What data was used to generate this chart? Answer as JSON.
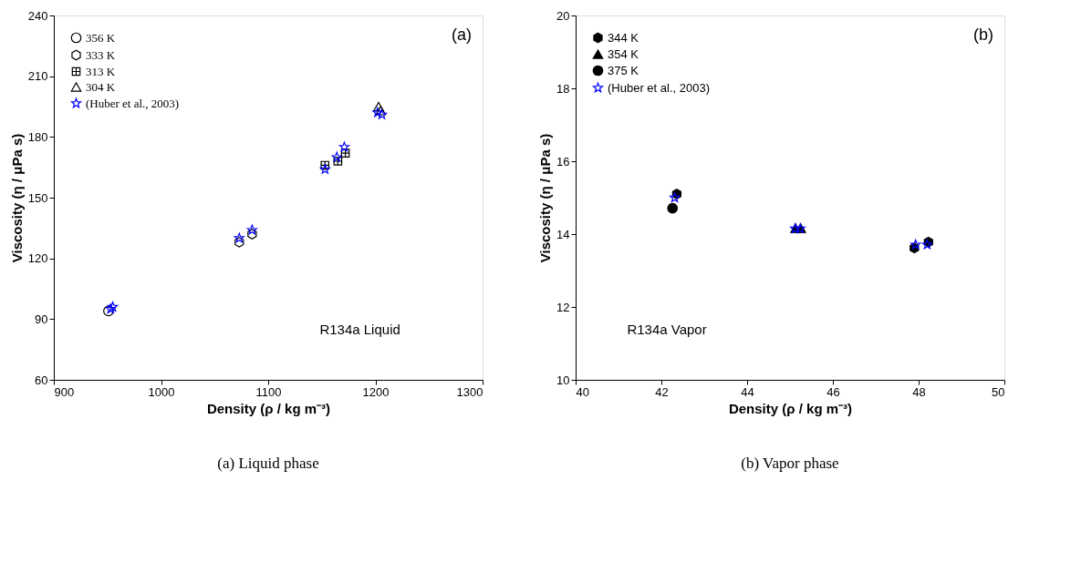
{
  "chart_data": [
    {
      "type": "scatter",
      "xlabel": "Density (ρ / kg m⁻³)",
      "ylabel": "Viscosity (η / μPa s)",
      "xlim": [
        900,
        1300
      ],
      "xticks": [
        900,
        1000,
        1100,
        1200,
        1300
      ],
      "ylim": [
        60,
        240
      ],
      "yticks": [
        60,
        90,
        120,
        150,
        180,
        210,
        240
      ],
      "grid": false,
      "legend": "top left",
      "annotations": [
        "(a)",
        "R134a  Liquid",
        "(a)  Liquid phase"
      ],
      "series": [
        {
          "name": "356 K",
          "color": "#000000",
          "marker": "circle",
          "x": [
            951
          ],
          "values": [
            94
          ]
        },
        {
          "name": "333 K",
          "color": "#000000",
          "x": [
            1073,
            1085
          ],
          "values": [
            128,
            132
          ]
        },
        {
          "name": "313 K",
          "color": "#000000",
          "marker": "cross",
          "x": [
            1153,
            1165,
            1172
          ],
          "values": [
            166,
            168,
            172
          ]
        },
        {
          "name": "304 K",
          "color": "#000000",
          "marker": "triangle",
          "x": [
            1203,
            1205
          ],
          "values": [
            195,
            193
          ]
        },
        {
          "name": "(Huber et al., 2003)",
          "color": "#0000ff",
          "marker": "star",
          "x": [
            953,
            955,
            1073,
            1085,
            1153,
            1164,
            1171,
            1202,
            1206
          ],
          "values": [
            95,
            96,
            130,
            134,
            164,
            170,
            175,
            192,
            191
          ]
        }
      ]
    },
    {
      "type": "scatter",
      "xlabel": "Density (ρ / kg m⁻³)",
      "ylabel": "Viscosity (η / μPa s)",
      "xlim": [
        40,
        50
      ],
      "xticks": [
        40,
        42,
        44,
        46,
        48,
        50
      ],
      "ylim": [
        10,
        20
      ],
      "yticks": [
        10,
        12,
        14,
        16,
        18,
        20
      ],
      "grid": false,
      "legend": "top left",
      "annotations": [
        "(b)",
        "R134a  Vapor",
        "(b)  Vapor phase"
      ],
      "series": [
        {
          "name": "344 K",
          "color": "#000000",
          "x": [
            42.36,
            47.9,
            48.23
          ],
          "values": [
            15.1,
            13.62,
            13.78
          ]
        },
        {
          "name": "354 K",
          "color": "#000000",
          "marker": "triangle",
          "x": [
            45.13,
            45.25
          ],
          "values": [
            14.16,
            14.16
          ]
        },
        {
          "name": "375 K",
          "color": "#000000",
          "marker": "circle",
          "x": [
            42.26
          ],
          "values": [
            14.71
          ]
        },
        {
          "name": "(Huber et al., 2003)",
          "color": "#0000ff",
          "marker": "star",
          "x": [
            42.31,
            45.12,
            45.24,
            47.93,
            48.2
          ],
          "values": [
            15.0,
            14.15,
            14.15,
            13.71,
            13.71
          ]
        }
      ]
    }
  ]
}
